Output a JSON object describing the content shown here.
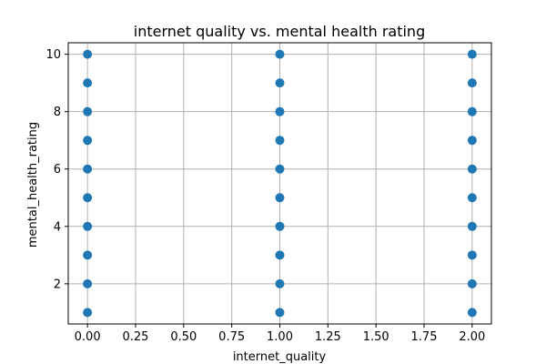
{
  "chart_data": {
    "type": "scatter",
    "title": "internet quality vs. mental health rating",
    "xlabel": "internet_quality",
    "ylabel": "mental_health_rating",
    "xlim": [
      -0.1,
      2.1
    ],
    "ylim": [
      0.6,
      10.4
    ],
    "xticks": [
      0.0,
      0.25,
      0.5,
      0.75,
      1.0,
      1.25,
      1.5,
      1.75,
      2.0
    ],
    "xtick_labels": [
      "0.00",
      "0.25",
      "0.50",
      "0.75",
      "1.00",
      "1.25",
      "1.50",
      "1.75",
      "2.00"
    ],
    "yticks": [
      2,
      4,
      6,
      8,
      10
    ],
    "ytick_labels": [
      "2",
      "4",
      "6",
      "8",
      "10"
    ],
    "grid": true,
    "series": [
      {
        "x": [
          0,
          0,
          0,
          0,
          0,
          0,
          0,
          0,
          0,
          0,
          1,
          1,
          1,
          1,
          1,
          1,
          1,
          1,
          1,
          1,
          2,
          2,
          2,
          2,
          2,
          2,
          2,
          2,
          2,
          2
        ],
        "y": [
          1,
          2,
          3,
          4,
          5,
          6,
          7,
          8,
          9,
          10,
          1,
          2,
          3,
          4,
          5,
          6,
          7,
          8,
          9,
          10,
          1,
          2,
          3,
          4,
          5,
          6,
          7,
          8,
          9,
          10
        ],
        "color": "#1f77b4"
      }
    ]
  }
}
